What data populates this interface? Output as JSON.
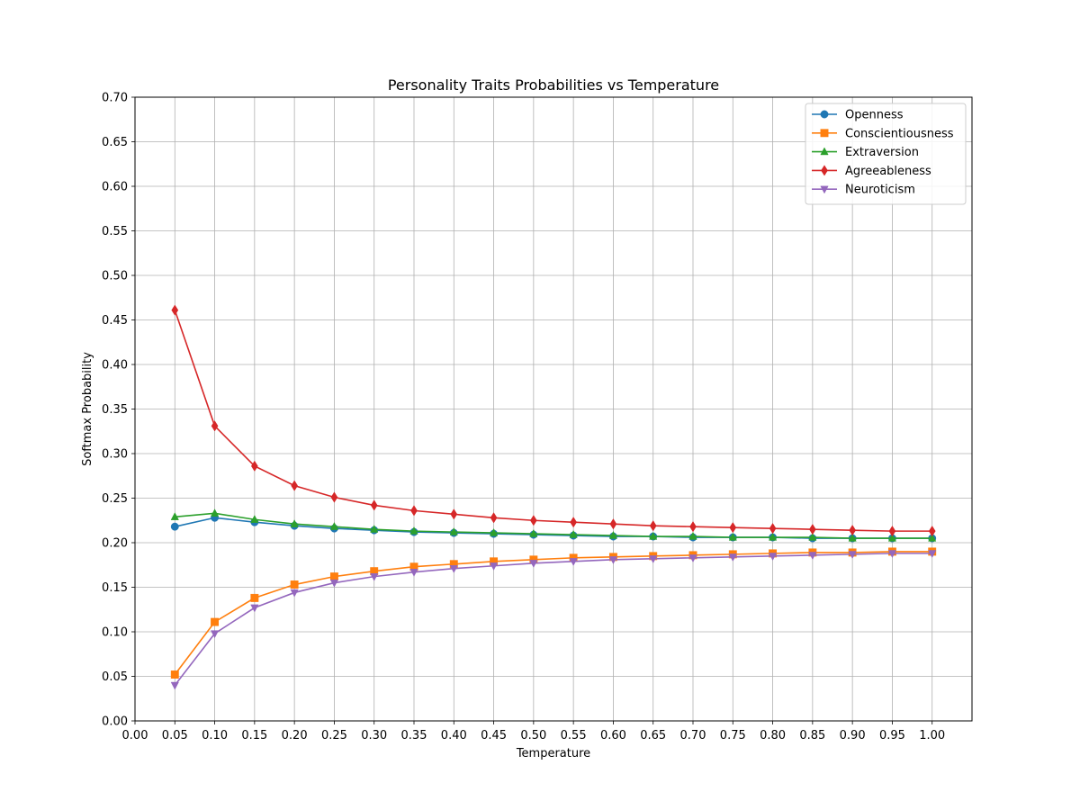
{
  "chart_data": {
    "type": "line",
    "title": "Personality Traits Probabilities vs Temperature",
    "xlabel": "Temperature",
    "ylabel": "Softmax Probability",
    "xlim": [
      0.0,
      1.05
    ],
    "ylim": [
      0.0,
      0.7
    ],
    "grid": true,
    "legend_position": "top-right",
    "x": [
      0.05,
      0.1,
      0.15,
      0.2,
      0.25,
      0.3,
      0.35,
      0.4,
      0.45,
      0.5,
      0.55,
      0.6,
      0.65,
      0.7,
      0.75,
      0.8,
      0.85,
      0.9,
      0.95,
      1.0
    ],
    "x_ticks": [
      "0.00",
      "0.05",
      "0.10",
      "0.15",
      "0.20",
      "0.25",
      "0.30",
      "0.35",
      "0.40",
      "0.45",
      "0.50",
      "0.55",
      "0.60",
      "0.65",
      "0.70",
      "0.75",
      "0.80",
      "0.85",
      "0.90",
      "0.95",
      "1.00"
    ],
    "y_ticks": [
      "0.00",
      "0.05",
      "0.10",
      "0.15",
      "0.20",
      "0.25",
      "0.30",
      "0.35",
      "0.40",
      "0.45",
      "0.50",
      "0.55",
      "0.60",
      "0.65",
      "0.70"
    ],
    "series": [
      {
        "name": "Openness",
        "color": "#1f77b4",
        "marker": "circle",
        "values": [
          0.218,
          0.228,
          0.223,
          0.219,
          0.216,
          0.214,
          0.212,
          0.211,
          0.21,
          0.209,
          0.208,
          0.207,
          0.207,
          0.206,
          0.206,
          0.206,
          0.205,
          0.205,
          0.205,
          0.205
        ]
      },
      {
        "name": "Conscientiousness",
        "color": "#ff7f0e",
        "marker": "square",
        "values": [
          0.052,
          0.111,
          0.138,
          0.153,
          0.162,
          0.168,
          0.173,
          0.176,
          0.179,
          0.181,
          0.183,
          0.184,
          0.185,
          0.186,
          0.187,
          0.188,
          0.189,
          0.189,
          0.19,
          0.19
        ]
      },
      {
        "name": "Extraversion",
        "color": "#2ca02c",
        "marker": "triangle-up",
        "values": [
          0.229,
          0.233,
          0.226,
          0.221,
          0.218,
          0.215,
          0.213,
          0.212,
          0.211,
          0.21,
          0.209,
          0.208,
          0.207,
          0.207,
          0.206,
          0.206,
          0.206,
          0.205,
          0.205,
          0.205
        ]
      },
      {
        "name": "Agreeableness",
        "color": "#d62728",
        "marker": "diamond",
        "values": [
          0.461,
          0.331,
          0.286,
          0.264,
          0.251,
          0.242,
          0.236,
          0.232,
          0.228,
          0.225,
          0.223,
          0.221,
          0.219,
          0.218,
          0.217,
          0.216,
          0.215,
          0.214,
          0.213,
          0.213
        ]
      },
      {
        "name": "Neuroticism",
        "color": "#9467bd",
        "marker": "triangle-down",
        "values": [
          0.04,
          0.098,
          0.127,
          0.144,
          0.155,
          0.162,
          0.167,
          0.171,
          0.174,
          0.177,
          0.179,
          0.181,
          0.182,
          0.183,
          0.184,
          0.185,
          0.186,
          0.187,
          0.188,
          0.188
        ]
      }
    ]
  }
}
